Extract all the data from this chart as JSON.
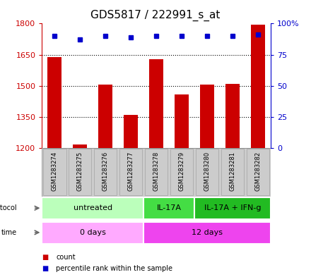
{
  "title": "GDS5817 / 222991_s_at",
  "samples": [
    "GSM1283274",
    "GSM1283275",
    "GSM1283276",
    "GSM1283277",
    "GSM1283278",
    "GSM1283279",
    "GSM1283280",
    "GSM1283281",
    "GSM1283282"
  ],
  "counts": [
    1638,
    1215,
    1505,
    1360,
    1628,
    1458,
    1505,
    1510,
    1795
  ],
  "percentile_ranks": [
    90,
    87,
    90,
    89,
    90,
    90,
    90,
    90,
    91
  ],
  "ylim_left": [
    1200,
    1800
  ],
  "ylim_right": [
    0,
    100
  ],
  "yticks_left": [
    1200,
    1350,
    1500,
    1650,
    1800
  ],
  "yticks_right": [
    0,
    25,
    50,
    75,
    100
  ],
  "bar_color": "#cc0000",
  "dot_color": "#0000cc",
  "protocol_groups": [
    {
      "label": "untreated",
      "start": 0,
      "end": 4,
      "color": "#bbffbb"
    },
    {
      "label": "IL-17A",
      "start": 4,
      "end": 6,
      "color": "#44dd44"
    },
    {
      "label": "IL-17A + IFN-g",
      "start": 6,
      "end": 9,
      "color": "#22bb22"
    }
  ],
  "time_groups": [
    {
      "label": "0 days",
      "start": 0,
      "end": 4,
      "color": "#ffaaff"
    },
    {
      "label": "12 days",
      "start": 4,
      "end": 9,
      "color": "#ee44ee"
    }
  ],
  "left_label_color": "#cc0000",
  "right_label_color": "#0000cc",
  "title_fontsize": 11,
  "tick_fontsize": 8,
  "bar_width": 0.55,
  "sample_box_color": "#cccccc",
  "sample_box_border": "#999999"
}
